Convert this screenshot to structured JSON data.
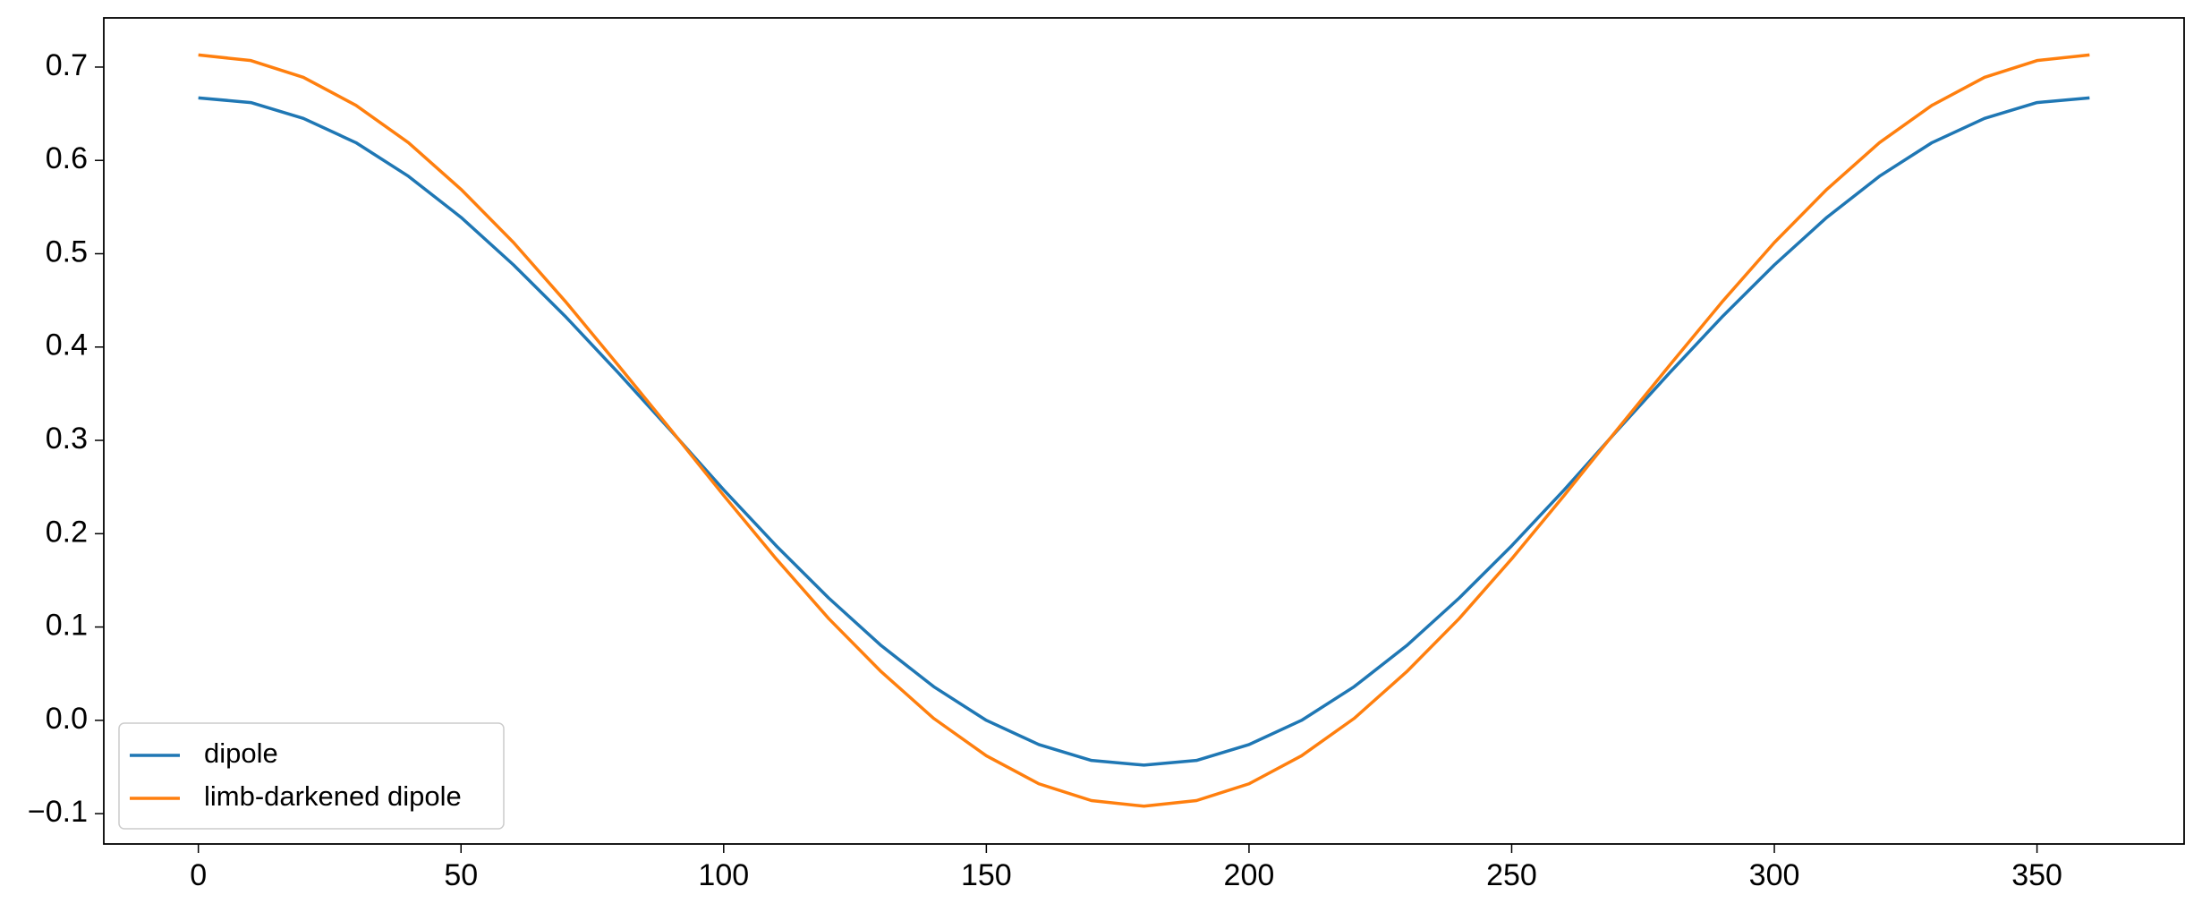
{
  "chart_data": {
    "type": "line",
    "x": [
      0,
      10,
      20,
      30,
      40,
      50,
      60,
      70,
      80,
      90,
      100,
      110,
      120,
      130,
      140,
      150,
      160,
      170,
      180,
      190,
      200,
      210,
      220,
      230,
      240,
      250,
      260,
      270,
      280,
      290,
      300,
      310,
      320,
      330,
      340,
      350,
      360
    ],
    "series": [
      {
        "name": "dipole",
        "color": "#1f77b4",
        "values": [
          0.667,
          0.662,
          0.645,
          0.619,
          0.583,
          0.539,
          0.488,
          0.432,
          0.372,
          0.31,
          0.247,
          0.187,
          0.131,
          0.08,
          0.036,
          0.0,
          -0.026,
          -0.043,
          -0.048,
          -0.043,
          -0.026,
          0.0,
          0.036,
          0.08,
          0.131,
          0.187,
          0.247,
          0.31,
          0.372,
          0.432,
          0.488,
          0.539,
          0.583,
          0.619,
          0.645,
          0.662,
          0.667
        ]
      },
      {
        "name": "limb-darkened dipole",
        "color": "#ff7f0e",
        "values": [
          0.713,
          0.707,
          0.689,
          0.659,
          0.619,
          0.569,
          0.512,
          0.448,
          0.38,
          0.311,
          0.241,
          0.173,
          0.109,
          0.052,
          0.002,
          -0.038,
          -0.068,
          -0.086,
          -0.092,
          -0.086,
          -0.068,
          -0.038,
          0.002,
          0.052,
          0.109,
          0.173,
          0.241,
          0.311,
          0.38,
          0.448,
          0.512,
          0.569,
          0.619,
          0.659,
          0.689,
          0.707,
          0.713
        ]
      }
    ],
    "xlim": [
      -18,
      378
    ],
    "ylim": [
      -0.1325,
      0.7527
    ],
    "xticks": [
      0,
      50,
      100,
      150,
      200,
      250,
      300,
      350
    ],
    "yticks": [
      {
        "value": -0.1,
        "label": "−0.1"
      },
      {
        "value": 0,
        "label": "0.0"
      },
      0.1,
      0.2,
      0.3,
      0.4,
      0.5,
      0.6,
      0.7
    ],
    "legend": "lower left"
  }
}
